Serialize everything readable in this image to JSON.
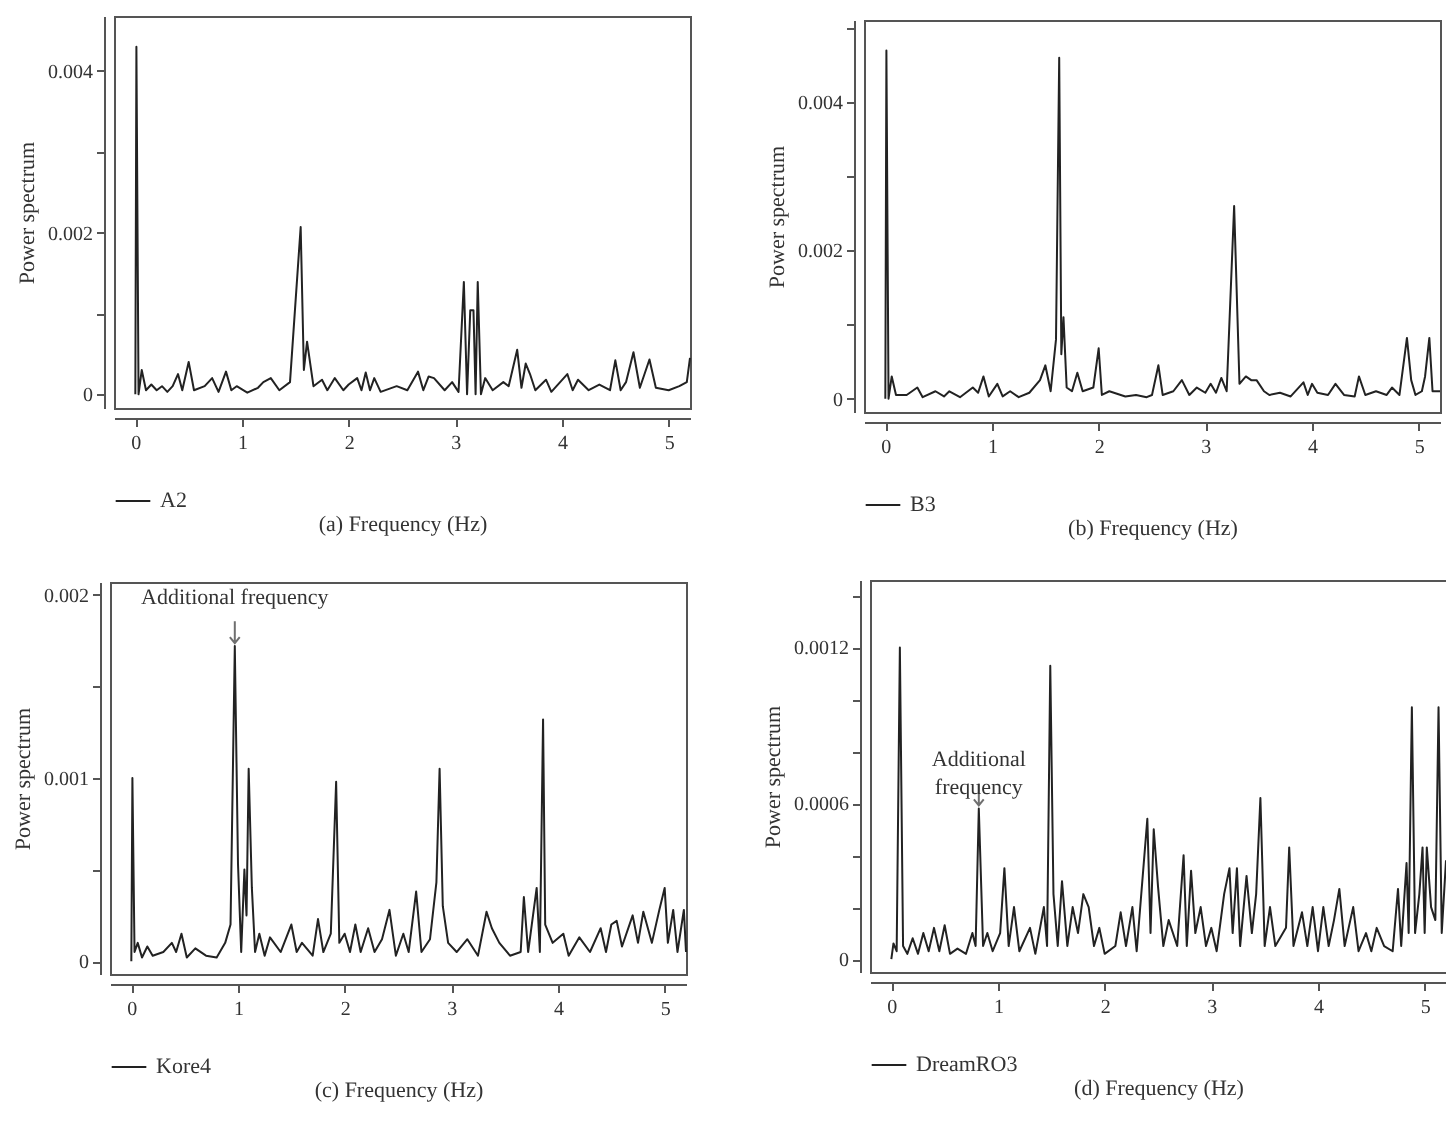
{
  "chart_data": [
    {
      "type": "line",
      "xlabel": "(a)  Frequency (Hz)",
      "ylabel": "Power spectrum",
      "legend": "bottom left",
      "xlim": [
        -0.2,
        5.2
      ],
      "xticks": [
        0,
        1,
        2,
        3,
        4,
        5
      ],
      "ylim": [
        -0.00017,
        0.00468
      ],
      "yticks": [
        0,
        {
          "value": 0.001,
          "label": null
        },
        0.002,
        {
          "value": 0.003,
          "label": null
        },
        0.004
      ],
      "series": [
        {
          "name": "A2",
          "color": "#222222",
          "x": [
            0,
            0.01,
            0.03,
            0.06,
            0.1,
            0.15,
            0.2,
            0.25,
            0.3,
            0.35,
            0.4,
            0.44,
            0.5,
            0.55,
            0.65,
            0.72,
            0.78,
            0.85,
            0.9,
            0.95,
            1.05,
            1.15,
            1.2,
            1.27,
            1.35,
            1.45,
            1.55,
            1.58,
            1.61,
            1.67,
            1.75,
            1.8,
            1.87,
            1.95,
            2.0,
            2.08,
            2.12,
            2.16,
            2.2,
            2.24,
            2.3,
            2.45,
            2.55,
            2.65,
            2.7,
            2.75,
            2.8,
            2.9,
            2.97,
            3.03,
            3.08,
            3.11,
            3.14,
            3.17,
            3.19,
            3.21,
            3.24,
            3.28,
            3.35,
            3.45,
            3.5,
            3.58,
            3.62,
            3.66,
            3.7,
            3.75,
            3.85,
            3.9,
            4.05,
            4.1,
            4.15,
            4.25,
            4.35,
            4.45,
            4.5,
            4.55,
            4.6,
            4.67,
            4.73,
            4.82,
            4.88,
            5.0,
            5.1,
            5.17,
            5.2
          ],
          "values": [
            0,
            0.0043,
            0,
            0.0003,
            5e-05,
            0.00012,
            5e-05,
            0.0001,
            3e-05,
            0.0001,
            0.00025,
            5e-05,
            0.0004,
            5e-05,
            0.0001,
            0.0002,
            3e-05,
            0.00028,
            5e-05,
            0.0001,
            2e-05,
            8e-05,
            0.00015,
            0.0002,
            5e-05,
            0.00015,
            0.00207,
            0.0003,
            0.00065,
            0.0001,
            0.00018,
            5e-05,
            0.0002,
            5e-05,
            0.00012,
            0.0002,
            5e-05,
            0.00027,
            5e-05,
            0.0002,
            3e-05,
            0.0001,
            5e-05,
            0.00028,
            5e-05,
            0.00022,
            0.0002,
            5e-05,
            0.00015,
            3e-05,
            0.00139,
            0,
            0.00104,
            0.00104,
            0,
            0.00139,
            0,
            0.0002,
            5e-05,
            0.00015,
            0.0001,
            0.00055,
            8e-05,
            0.00038,
            0.00025,
            5e-05,
            0.00018,
            3e-05,
            0.00025,
            5e-05,
            0.00018,
            5e-05,
            0.00012,
            5e-05,
            0.00042,
            5e-05,
            0.00015,
            0.00052,
            8e-05,
            0.00043,
            8e-05,
            5e-05,
            0.0001,
            0.00015,
            0.00045
          ]
        }
      ]
    },
    {
      "type": "line",
      "xlabel": "(b)  Frequency (Hz)",
      "ylabel": "Power spectrum",
      "legend": "bottom left",
      "xlim": [
        -0.2,
        5.2
      ],
      "xticks": [
        0,
        1,
        2,
        3,
        4,
        5
      ],
      "ylim": [
        -0.00018,
        0.00511
      ],
      "yticks": [
        0,
        {
          "value": 0.001,
          "label": null
        },
        0.002,
        {
          "value": 0.003,
          "label": null
        },
        0.004,
        {
          "value": 0.005,
          "label": null
        }
      ],
      "series": [
        {
          "name": "B3",
          "color": "#222222",
          "x": [
            0,
            0.01,
            0.03,
            0.06,
            0.1,
            0.2,
            0.3,
            0.35,
            0.47,
            0.55,
            0.6,
            0.7,
            0.82,
            0.87,
            0.92,
            0.97,
            1.05,
            1.1,
            1.17,
            1.25,
            1.35,
            1.45,
            1.5,
            1.55,
            1.6,
            1.63,
            1.65,
            1.67,
            1.7,
            1.75,
            1.8,
            1.85,
            1.95,
            2.0,
            2.03,
            2.1,
            2.25,
            2.35,
            2.45,
            2.5,
            2.56,
            2.6,
            2.7,
            2.78,
            2.85,
            2.92,
            3.0,
            3.05,
            3.1,
            3.15,
            3.2,
            3.27,
            3.32,
            3.38,
            3.43,
            3.48,
            3.55,
            3.6,
            3.7,
            3.8,
            3.92,
            3.96,
            4.0,
            4.05,
            4.15,
            4.22,
            4.3,
            4.4,
            4.44,
            4.5,
            4.6,
            4.7,
            4.75,
            4.82,
            4.89,
            4.93,
            4.97,
            5.03,
            5.06,
            5.1,
            5.13,
            5.2
          ],
          "values": [
            0,
            0.0047,
            0,
            0.0003,
            5e-05,
            5e-05,
            0.00015,
            2e-05,
            0.0001,
            3e-05,
            0.0001,
            2e-05,
            0.00015,
            8e-05,
            0.0003,
            3e-05,
            0.0002,
            3e-05,
            0.0001,
            2e-05,
            8e-05,
            0.00025,
            0.00045,
            0.0001,
            0.0008,
            0.0046,
            0.0006,
            0.0011,
            0.00015,
            0.0001,
            0.00035,
            0.0001,
            0.00015,
            0.00068,
            5e-05,
            0.0001,
            3e-05,
            5e-05,
            2e-05,
            5e-05,
            0.00045,
            5e-05,
            0.0001,
            0.00025,
            5e-05,
            0.00015,
            8e-05,
            0.0002,
            8e-05,
            0.00028,
            0.0001,
            0.0026,
            0.0002,
            0.0003,
            0.00025,
            0.00025,
            0.0001,
            5e-05,
            8e-05,
            3e-05,
            0.00022,
            5e-05,
            0.0002,
            8e-05,
            5e-05,
            0.0002,
            5e-05,
            3e-05,
            0.0003,
            5e-05,
            0.0001,
            5e-05,
            0.00015,
            5e-05,
            0.00082,
            0.00025,
            5e-05,
            0.0001,
            0.0003,
            0.00082,
            0.0001,
            0.0001
          ]
        }
      ]
    },
    {
      "type": "line",
      "xlabel": "(c)  Frequency (Hz)",
      "ylabel": "Power spectrum",
      "legend": "bottom left",
      "xlim": [
        -0.2,
        5.2
      ],
      "xticks": [
        0,
        1,
        2,
        3,
        4,
        5
      ],
      "ylim": [
        -7e-05,
        0.00207
      ],
      "yticks": [
        0,
        {
          "value": 0.0005,
          "label": null
        },
        0.001,
        {
          "value": 0.0015,
          "label": null
        },
        0.002
      ],
      "annotations": [
        {
          "text": "Additional frequency",
          "x": 0.97,
          "y": 0.00172
        }
      ],
      "series": [
        {
          "name": "Kore4",
          "color": "#222222",
          "x": [
            0,
            0.01,
            0.03,
            0.06,
            0.1,
            0.15,
            0.2,
            0.3,
            0.38,
            0.42,
            0.47,
            0.52,
            0.6,
            0.7,
            0.8,
            0.88,
            0.93,
            0.97,
            1.0,
            1.03,
            1.06,
            1.08,
            1.1,
            1.13,
            1.16,
            1.2,
            1.25,
            1.3,
            1.4,
            1.5,
            1.55,
            1.6,
            1.7,
            1.75,
            1.8,
            1.87,
            1.92,
            1.95,
            2.0,
            2.05,
            2.1,
            2.15,
            2.22,
            2.28,
            2.35,
            2.42,
            2.48,
            2.55,
            2.6,
            2.67,
            2.72,
            2.8,
            2.86,
            2.89,
            2.92,
            2.97,
            3.05,
            3.15,
            3.25,
            3.33,
            3.38,
            3.45,
            3.55,
            3.65,
            3.68,
            3.72,
            3.8,
            3.83,
            3.86,
            3.88,
            3.95,
            4.05,
            4.1,
            4.2,
            4.3,
            4.4,
            4.45,
            4.5,
            4.55,
            4.6,
            4.7,
            4.75,
            4.8,
            4.88,
            4.95,
            5.0,
            5.03,
            5.08,
            5.12,
            5.18,
            5.2
          ],
          "values": [
            0,
            0.001,
            5e-05,
            0.0001,
            2e-05,
            8e-05,
            3e-05,
            5e-05,
            0.0001,
            5e-05,
            0.00015,
            2e-05,
            7e-05,
            3e-05,
            2e-05,
            0.0001,
            0.0002,
            0.00172,
            0.00053,
            5e-05,
            0.0005,
            0.00025,
            0.00105,
            0.0004,
            5e-05,
            0.00015,
            3e-05,
            0.00013,
            5e-05,
            0.0002,
            5e-05,
            0.0001,
            3e-05,
            0.00023,
            5e-05,
            0.00015,
            0.00098,
            0.0001,
            0.00015,
            5e-05,
            0.0002,
            5e-05,
            0.00018,
            5e-05,
            0.00012,
            0.00028,
            3e-05,
            0.00015,
            5e-05,
            0.00038,
            5e-05,
            0.00012,
            0.00043,
            0.00105,
            0.0003,
            0.0001,
            5e-05,
            0.00012,
            3e-05,
            0.00027,
            0.00018,
            0.0001,
            3e-05,
            5e-05,
            0.00035,
            5e-05,
            0.0004,
            5e-05,
            0.00132,
            0.0002,
            0.0001,
            0.00015,
            3e-05,
            0.00013,
            5e-05,
            0.00018,
            5e-05,
            0.0002,
            0.00022,
            8e-05,
            0.00025,
            0.0001,
            0.00027,
            0.0001,
            0.00028,
            0.0004,
            0.0001,
            0.00028,
            5e-05,
            0.00028,
            5e-05
          ]
        }
      ]
    },
    {
      "type": "line",
      "xlabel": "(d)  Frequency (Hz)",
      "ylabel": "Power spectrum",
      "legend": "bottom left",
      "xlim": [
        -0.2,
        5.2
      ],
      "xticks": [
        0,
        1,
        2,
        3,
        4,
        5
      ],
      "ylim": [
        -5e-05,
        0.00146
      ],
      "yticks": [
        0,
        {
          "value": 0.0002,
          "label": null
        },
        {
          "value": 0.0004,
          "label": null
        },
        0.0006,
        {
          "value": 0.0008,
          "label": null
        },
        {
          "value": 0.001,
          "label": null
        },
        0.0012,
        {
          "value": 0.0014,
          "label": null
        }
      ],
      "annotations": [
        {
          "text": "Additional\nfrequency",
          "x": 0.82,
          "y": 0.00058
        }
      ],
      "series": [
        {
          "name": "DreamRO3",
          "color": "#222222",
          "x": [
            0,
            0.02,
            0.05,
            0.08,
            0.11,
            0.15,
            0.2,
            0.25,
            0.3,
            0.35,
            0.4,
            0.45,
            0.5,
            0.55,
            0.62,
            0.7,
            0.76,
            0.79,
            0.82,
            0.86,
            0.9,
            0.95,
            1.02,
            1.06,
            1.1,
            1.15,
            1.2,
            1.3,
            1.35,
            1.43,
            1.46,
            1.49,
            1.52,
            1.56,
            1.6,
            1.65,
            1.7,
            1.75,
            1.8,
            1.85,
            1.9,
            1.95,
            2.0,
            2.1,
            2.15,
            2.2,
            2.26,
            2.3,
            2.4,
            2.43,
            2.46,
            2.5,
            2.55,
            2.6,
            2.68,
            2.74,
            2.77,
            2.81,
            2.85,
            2.9,
            2.95,
            3.0,
            3.05,
            3.12,
            3.17,
            3.2,
            3.24,
            3.27,
            3.33,
            3.38,
            3.42,
            3.46,
            3.5,
            3.55,
            3.6,
            3.7,
            3.73,
            3.77,
            3.85,
            3.9,
            3.95,
            4.0,
            4.05,
            4.1,
            4.15,
            4.2,
            4.25,
            4.33,
            4.38,
            4.45,
            4.5,
            4.55,
            4.62,
            4.7,
            4.75,
            4.78,
            4.83,
            4.85,
            4.88,
            4.91,
            4.95,
            4.98,
            5.0,
            5.02,
            5.06,
            5.1,
            5.13,
            5.16,
            5.2
          ],
          "values": [
            0,
            6e-05,
            3e-05,
            0.0012,
            5e-05,
            2e-05,
            8e-05,
            2e-05,
            0.0001,
            3e-05,
            0.00012,
            3e-05,
            0.00013,
            2e-05,
            4e-05,
            2e-05,
            0.0001,
            5e-05,
            0.00058,
            5e-05,
            0.0001,
            3e-05,
            0.0001,
            0.00035,
            5e-05,
            0.0002,
            3e-05,
            0.00012,
            2e-05,
            0.0002,
            5e-05,
            0.00113,
            0.00025,
            5e-05,
            0.0003,
            5e-05,
            0.0002,
            0.0001,
            0.00025,
            0.0002,
            5e-05,
            0.00012,
            2e-05,
            5e-05,
            0.00018,
            5e-05,
            0.0002,
            3e-05,
            0.00054,
            0.0001,
            0.0005,
            0.00028,
            5e-05,
            0.00015,
            5e-05,
            0.0004,
            5e-05,
            0.00034,
            0.0001,
            0.0002,
            5e-05,
            0.00012,
            3e-05,
            0.00025,
            0.00035,
            0.0001,
            0.00035,
            5e-05,
            0.00032,
            0.0001,
            0.00025,
            0.00062,
            5e-05,
            0.0002,
            5e-05,
            0.00012,
            0.00043,
            5e-05,
            0.00018,
            5e-05,
            0.0002,
            3e-05,
            0.0002,
            5e-05,
            0.00015,
            0.00027,
            5e-05,
            0.0002,
            3e-05,
            0.0001,
            3e-05,
            0.00012,
            5e-05,
            3e-05,
            0.00027,
            5e-05,
            0.00037,
            0.0001,
            0.00097,
            0.0001,
            0.00025,
            0.00043,
            0.0001,
            0.00043,
            0.0002,
            0.00015,
            0.00097,
            0.0001,
            0.00038
          ]
        }
      ]
    }
  ]
}
